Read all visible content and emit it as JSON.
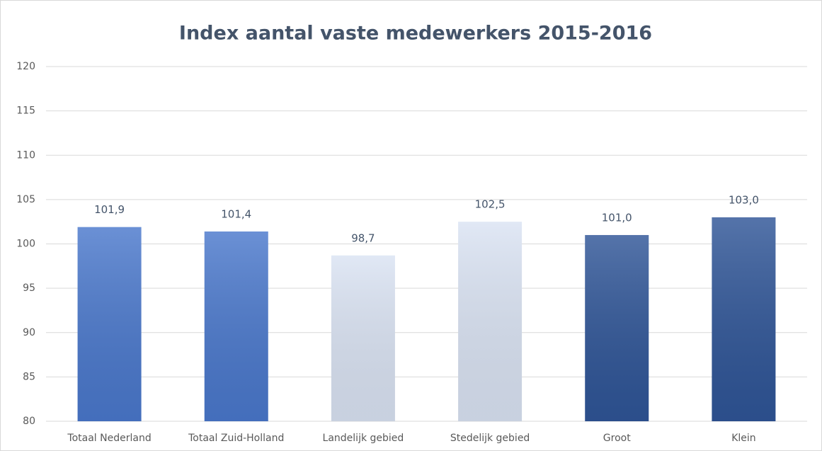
{
  "chart_data": {
    "type": "bar",
    "title": "Index aantal vaste medewerkers 2015-2016",
    "categories": [
      "Totaal Nederland",
      "Totaal Zuid-Holland",
      "Landelijk gebied",
      "Stedelijk gebied",
      "Groot",
      "Klein"
    ],
    "values": [
      101.9,
      101.4,
      98.7,
      102.5,
      101.0,
      103.0
    ],
    "value_labels": [
      "101,9",
      "101,4",
      "98,7",
      "102,5",
      "101,0",
      "103,0"
    ],
    "colors": [
      "#4a78cc",
      "#4a78cc",
      "#dae3f3",
      "#dae3f3",
      "#2f5597",
      "#2f5597"
    ],
    "ylim": [
      80,
      120
    ],
    "yticks": [
      80,
      85,
      90,
      95,
      100,
      105,
      110,
      115,
      120
    ],
    "grid": true
  }
}
